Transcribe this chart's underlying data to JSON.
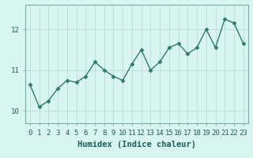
{
  "x": [
    0,
    1,
    2,
    3,
    4,
    5,
    6,
    7,
    8,
    9,
    10,
    11,
    12,
    13,
    14,
    15,
    16,
    17,
    18,
    19,
    20,
    21,
    22,
    23
  ],
  "y": [
    10.65,
    10.1,
    10.25,
    10.55,
    10.75,
    10.7,
    10.85,
    11.2,
    11.0,
    10.85,
    10.75,
    11.15,
    11.5,
    11.0,
    11.2,
    11.55,
    11.65,
    11.4,
    11.55,
    12.0,
    11.55,
    12.25,
    12.15,
    11.65
  ],
  "line_color": "#2e7d6e",
  "marker": "D",
  "markersize": 2.5,
  "linewidth": 1.0,
  "bg_color": "#d8f5f0",
  "grid_color": "#b8dcd8",
  "xlabel": "Humidex (Indice chaleur)",
  "xlabel_fontsize": 7.5,
  "tick_fontsize": 6.5,
  "yticks": [
    10,
    11,
    12
  ],
  "ylim": [
    9.7,
    12.6
  ],
  "xlim": [
    -0.5,
    23.5
  ],
  "xtick_labels": [
    "0",
    "1",
    "2",
    "3",
    "4",
    "5",
    "6",
    "7",
    "8",
    "9",
    "10",
    "11",
    "12",
    "13",
    "14",
    "15",
    "16",
    "17",
    "18",
    "19",
    "20",
    "21",
    "22",
    "23"
  ]
}
